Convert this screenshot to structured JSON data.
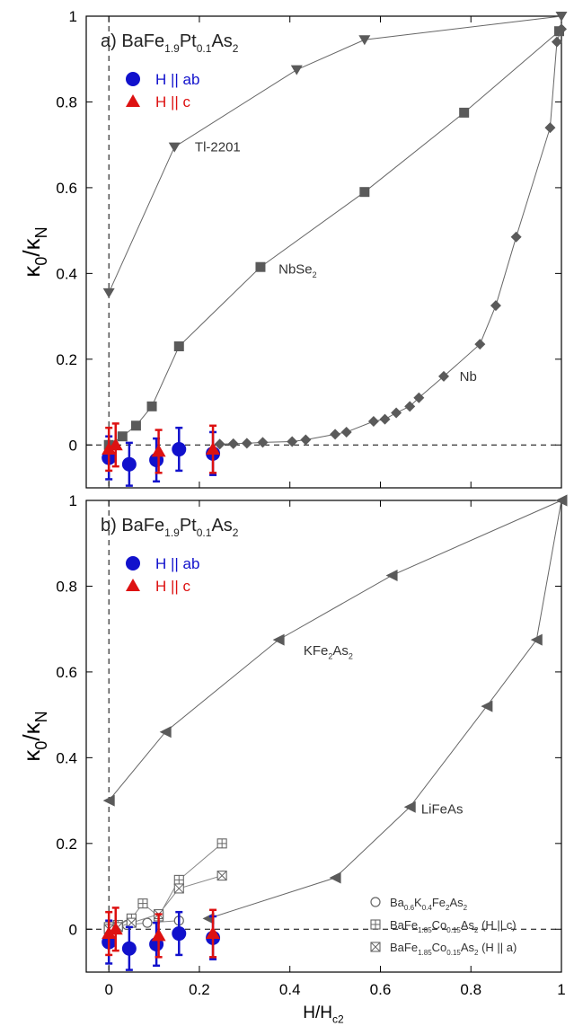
{
  "figure": {
    "ylabel": {
      "main": "κ",
      "sub1": "0",
      "slash": "/κ",
      "sub2": "N"
    },
    "xlabel": {
      "main": "H/H",
      "sub": "c2"
    },
    "x_ticks": [
      "0",
      "0.2",
      "0.4",
      "0.6",
      "0.8",
      "1"
    ],
    "y_ticks": [
      "0",
      "0.2",
      "0.4",
      "0.6",
      "0.8",
      "1"
    ]
  },
  "chart_data": [
    {
      "type": "scatter",
      "panel_label": "a)",
      "title": {
        "pre": "BaFe",
        "s1": "1.9",
        "mid": "Pt",
        "s2": "0.1",
        "post": "As",
        "s3": "2"
      },
      "xlim": [
        -0.05,
        1.0
      ],
      "ylim": [
        -0.1,
        1.0
      ],
      "grid": false,
      "legend": {
        "placement": "top-left",
        "entries": [
          "H || ab",
          "H || c"
        ]
      },
      "colors": {
        "blue": "#1111cc",
        "red": "#dd1111",
        "reference": "#5a5a5a"
      },
      "series": [
        {
          "name": "H || ab",
          "marker": "circle",
          "color": "#1111cc",
          "x": [
            0.0,
            0.045,
            0.105,
            0.155,
            0.23
          ],
          "y": [
            -0.03,
            -0.045,
            -0.035,
            -0.01,
            -0.02
          ],
          "err": [
            0.05,
            0.05,
            0.05,
            0.05,
            0.05
          ]
        },
        {
          "name": "H || c",
          "marker": "triangle",
          "color": "#dd1111",
          "x": [
            0.0,
            0.015,
            0.11,
            0.23
          ],
          "y": [
            -0.01,
            0.0,
            -0.015,
            -0.01
          ],
          "err": [
            0.05,
            0.05,
            0.05,
            0.055
          ]
        },
        {
          "name": "Tl-2201",
          "marker": "triangle-down",
          "color": "#5a5a5a",
          "x": [
            0.0,
            0.145,
            0.415,
            0.565,
            1.0
          ],
          "y": [
            0.355,
            0.695,
            0.875,
            0.945,
            1.0
          ]
        },
        {
          "name": "NbSe2",
          "marker": "square",
          "color": "#5a5a5a",
          "x": [
            0.0,
            0.03,
            0.06,
            0.095,
            0.155,
            0.335,
            0.565,
            0.785,
            0.995
          ],
          "y": [
            0.0,
            0.02,
            0.045,
            0.09,
            0.23,
            0.415,
            0.59,
            0.775,
            0.965
          ]
        },
        {
          "name": "Nb",
          "marker": "diamond",
          "color": "#5a5a5a",
          "x": [
            0.245,
            0.275,
            0.305,
            0.34,
            0.405,
            0.435,
            0.5,
            0.525,
            0.585,
            0.61,
            0.635,
            0.665,
            0.685,
            0.74,
            0.82,
            0.855,
            0.9,
            0.975,
            0.99,
            1.0
          ],
          "y": [
            0.002,
            0.003,
            0.004,
            0.006,
            0.008,
            0.012,
            0.025,
            0.03,
            0.055,
            0.06,
            0.075,
            0.09,
            0.11,
            0.16,
            0.235,
            0.325,
            0.485,
            0.74,
            0.94,
            0.97
          ]
        }
      ],
      "annotations": [
        {
          "text": "Tl-2201",
          "sub": "",
          "rest": "",
          "x": 0.19,
          "y": 0.695
        },
        {
          "text": "NbSe",
          "sub": "2",
          "rest": "",
          "x": 0.375,
          "y": 0.41
        },
        {
          "text": "Nb",
          "sub": "",
          "rest": "",
          "x": 0.775,
          "y": 0.16
        }
      ]
    },
    {
      "type": "scatter",
      "panel_label": "b)",
      "title": {
        "pre": "BaFe",
        "s1": "1.9",
        "mid": "Pt",
        "s2": "0.1",
        "post": "As",
        "s3": "2"
      },
      "xlim": [
        -0.05,
        1.0
      ],
      "ylim": [
        -0.1,
        1.0
      ],
      "grid": false,
      "legend": {
        "placement": "top-left",
        "entries": [
          "H || ab",
          "H || c"
        ]
      },
      "colors": {
        "blue": "#1111cc",
        "red": "#dd1111",
        "reference": "#5a5a5a"
      },
      "series": [
        {
          "name": "H || ab",
          "marker": "circle",
          "color": "#1111cc",
          "x": [
            0.0,
            0.045,
            0.105,
            0.155,
            0.23
          ],
          "y": [
            -0.03,
            -0.045,
            -0.035,
            -0.01,
            -0.02
          ],
          "err": [
            0.05,
            0.05,
            0.05,
            0.05,
            0.05
          ]
        },
        {
          "name": "H || c",
          "marker": "triangle",
          "color": "#dd1111",
          "x": [
            0.0,
            0.015,
            0.11,
            0.23
          ],
          "y": [
            -0.01,
            0.0,
            -0.015,
            -0.01
          ],
          "err": [
            0.05,
            0.05,
            0.05,
            0.055
          ]
        },
        {
          "name": "KFe2As2",
          "marker": "triangle-left",
          "color": "#5a5a5a",
          "x": [
            0.0,
            0.125,
            0.375,
            0.625,
            1.0
          ],
          "y": [
            0.3,
            0.46,
            0.675,
            0.825,
            1.0
          ]
        },
        {
          "name": "LiFeAs",
          "marker": "triangle-left",
          "color": "#5a5a5a",
          "x": [
            0.22,
            0.5,
            0.665,
            0.835,
            0.945,
            1.0
          ],
          "y": [
            0.025,
            0.12,
            0.285,
            0.52,
            0.675,
            1.0
          ]
        },
        {
          "name": "Ba0.6K0.4Fe2As2",
          "marker": "open-circle",
          "color": "#666666",
          "x": [
            0.0,
            0.04,
            0.085,
            0.155
          ],
          "y": [
            0.005,
            0.01,
            0.015,
            0.02
          ]
        },
        {
          "name": "BaFe1.85Co0.15As2 (H || c)",
          "marker": "square-plus",
          "color": "#666666",
          "x": [
            0.0,
            0.02,
            0.05,
            0.075,
            0.11,
            0.155,
            0.25
          ],
          "y": [
            0.005,
            0.01,
            0.025,
            0.06,
            0.03,
            0.115,
            0.2
          ]
        },
        {
          "name": "BaFe1.85Co0.15As2 (H || a)",
          "marker": "square-x",
          "color": "#666666",
          "x": [
            0.0,
            0.02,
            0.05,
            0.11,
            0.155,
            0.25
          ],
          "y": [
            0.0,
            0.005,
            0.015,
            0.035,
            0.095,
            0.125
          ]
        }
      ],
      "annotations": [
        {
          "text": "KFe",
          "sub": "2",
          "rest": "As",
          "sub2": "2",
          "x": 0.43,
          "y": 0.65
        },
        {
          "text": "LiFeAs",
          "sub": "",
          "rest": "",
          "x": 0.69,
          "y": 0.28
        }
      ],
      "small_legend": [
        {
          "marker": "open-circle",
          "parts": [
            [
              "Ba",
              ""
            ],
            [
              "0.6",
              "sub"
            ],
            [
              "K",
              ""
            ],
            [
              "0.4",
              "sub"
            ],
            [
              "Fe",
              ""
            ],
            [
              "2",
              "sub"
            ],
            [
              "As",
              ""
            ],
            [
              "2",
              "sub"
            ]
          ]
        },
        {
          "marker": "square-plus",
          "parts": [
            [
              "BaFe",
              ""
            ],
            [
              "1.85",
              "sub"
            ],
            [
              "Co",
              ""
            ],
            [
              "0.15",
              "sub"
            ],
            [
              "As",
              ""
            ],
            [
              "2",
              "sub"
            ],
            [
              " (H || c)",
              ""
            ]
          ]
        },
        {
          "marker": "square-x",
          "parts": [
            [
              "BaFe",
              ""
            ],
            [
              "1.85",
              "sub"
            ],
            [
              "Co",
              ""
            ],
            [
              "0.15",
              "sub"
            ],
            [
              "As",
              ""
            ],
            [
              "2",
              "sub"
            ],
            [
              " (H || a)",
              ""
            ]
          ]
        }
      ]
    }
  ]
}
